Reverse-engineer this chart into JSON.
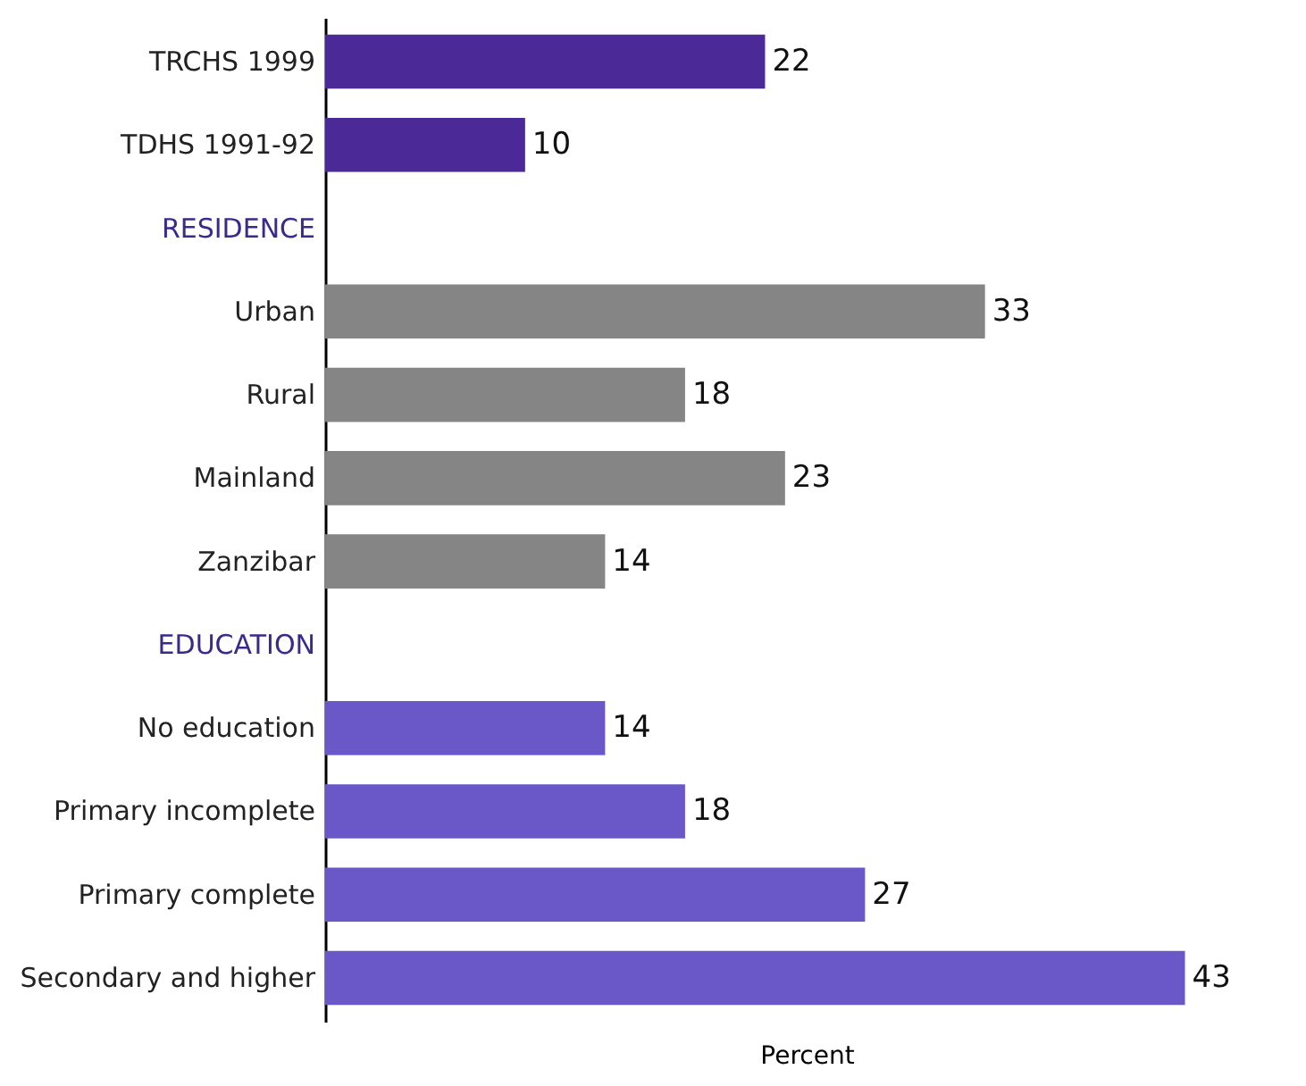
{
  "chart_data": {
    "type": "bar",
    "orientation": "horizontal",
    "xlabel": "Percent",
    "categories": [
      "TRCHS 1999",
      "TDHS 1991-92",
      "RESIDENCE",
      "Urban",
      "Rural",
      "Mainland",
      "Zanzibar",
      "EDUCATION",
      "No education",
      "Primary incomplete",
      "Primary complete",
      "Secondary and higher"
    ],
    "values": [
      22,
      10,
      null,
      33,
      18,
      23,
      14,
      null,
      14,
      18,
      27,
      43
    ],
    "colors": [
      "#4b2a98",
      "#4b2a98",
      null,
      "#858585",
      "#858585",
      "#858585",
      "#858585",
      null,
      "#6a58c8",
      "#6a58c8",
      "#6a58c8",
      "#6a58c8"
    ],
    "data_labels": true,
    "tick_labels": "y",
    "grid": false
  }
}
